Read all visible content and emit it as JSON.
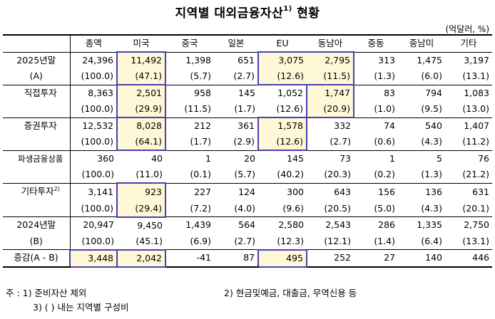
{
  "title": {
    "main": "지역별 대외금융자산",
    "sup": "1)",
    "suffix": "현황"
  },
  "unit": "(억달러, %)",
  "columns": [
    "총액",
    "미국",
    "중국",
    "일본",
    "EU",
    "동남아",
    "중동",
    "중남미",
    "기타"
  ],
  "rows": [
    {
      "label": "2025년말",
      "values": [
        "24,396",
        "11,492",
        "1,398",
        "651",
        "3,075",
        "2,795",
        "313",
        "1,475",
        "3,197"
      ]
    },
    {
      "label": "(A)",
      "values": [
        "(100.0)",
        "(47.1)",
        "(5.7)",
        "(2.7)",
        "(12.6)",
        "(11.5)",
        "(1.3)",
        "(6.0)",
        "(13.1)"
      ]
    },
    {
      "label": "직접투자",
      "values": [
        "8,363",
        "2,501",
        "958",
        "145",
        "1,052",
        "1,747",
        "83",
        "794",
        "1,083"
      ]
    },
    {
      "label": "",
      "values": [
        "(100.0)",
        "(29.9)",
        "(11.5)",
        "(1.7)",
        "(12.6)",
        "(20.9)",
        "(1.0)",
        "(9.5)",
        "(13.0)"
      ]
    },
    {
      "label": "증권투자",
      "values": [
        "12,532",
        "8,028",
        "212",
        "361",
        "1,578",
        "332",
        "74",
        "540",
        "1,407"
      ]
    },
    {
      "label": "",
      "values": [
        "(100.0)",
        "(64.1)",
        "(1.7)",
        "(2.9)",
        "(12.6)",
        "(2.7)",
        "(0.6)",
        "(4.3)",
        "(11.2)"
      ]
    },
    {
      "label": "파생금융상품",
      "values": [
        "360",
        "40",
        "1",
        "20",
        "145",
        "73",
        "1",
        "5",
        "76"
      ]
    },
    {
      "label": "",
      "values": [
        "(100.0)",
        "(11.0)",
        "(0.1)",
        "(5.7)",
        "(40.2)",
        "(20.3)",
        "(0.2)",
        "(1.3)",
        "(21.2)"
      ]
    },
    {
      "label": "기타투자",
      "label_sup": "2)",
      "values": [
        "3,141",
        "923",
        "227",
        "124",
        "300",
        "643",
        "156",
        "136",
        "631"
      ]
    },
    {
      "label": "",
      "values": [
        "(100.0)",
        "(29.4)",
        "(7.2)",
        "(4.0)",
        "(9.6)",
        "(20.5)",
        "(5.0)",
        "(4.3)",
        "(20.1)"
      ]
    },
    {
      "label": "2024년말",
      "values": [
        "20,947",
        "9,450",
        "1,439",
        "564",
        "2,580",
        "2,543",
        "286",
        "1,335",
        "2,750"
      ]
    },
    {
      "label": "(B)",
      "values": [
        "(100.0)",
        "(45.1)",
        "(6.9)",
        "(2.7)",
        "(12.3)",
        "(12.1)",
        "(1.4)",
        "(6.4)",
        "(13.1)"
      ]
    },
    {
      "label": "증감(A - B)",
      "values": [
        "3,448",
        "2,042",
        "-41",
        "87",
        "495",
        "252",
        "27",
        "140",
        "446"
      ]
    }
  ],
  "notes": {
    "n1": "주 : 1) 준비자산 제외",
    "n2": "2) 현금및예금, 대출금, 무역신용 등",
    "n3": "3) (  ) 내는 지역별 구성비"
  },
  "colors": {
    "highlight_fill": "#fff8d6",
    "highlight_border": "#4b3fb0"
  }
}
